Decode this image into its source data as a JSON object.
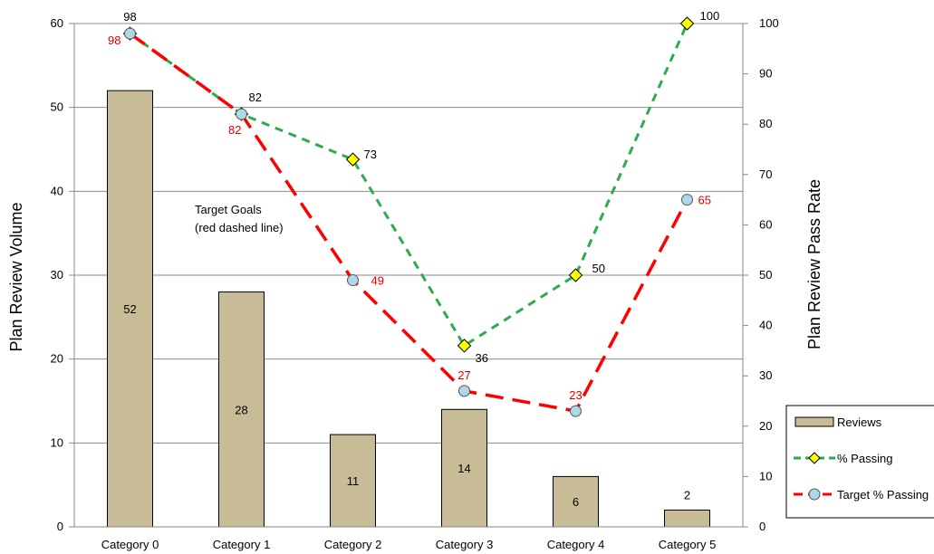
{
  "chart_data": {
    "type": "bar",
    "categories": [
      "Category 0",
      "Category 1",
      "Category 2",
      "Category 3",
      "Category 4",
      "Category 5"
    ],
    "series": [
      {
        "name": "Reviews",
        "type": "bar",
        "axis": "left",
        "values": [
          52,
          28,
          11,
          14,
          6,
          2
        ],
        "labels": [
          "52",
          "28",
          "11",
          "14",
          "6",
          "2"
        ],
        "color": "#c8bc96"
      },
      {
        "name": "% Passing",
        "type": "line",
        "axis": "right",
        "values": [
          98,
          82,
          73,
          36,
          50,
          100
        ],
        "labels": [
          "98",
          "82",
          "73",
          "36",
          "50",
          "100"
        ],
        "color": "#2eaa4f",
        "marker": "diamond",
        "marker_color": "#ffff00"
      },
      {
        "name": "Target % Passing",
        "type": "line",
        "axis": "right",
        "values": [
          98,
          82,
          49,
          27,
          23,
          65
        ],
        "labels": [
          "98",
          "82",
          "49",
          "27",
          "23",
          "65"
        ],
        "color": "#ff0000",
        "marker": "circle",
        "marker_color": "#add8e6"
      }
    ],
    "ylabel": "Plan Review Volume",
    "y2label": "Plan Review Pass Rate",
    "ylim": [
      0,
      60
    ],
    "yticks": [
      "0",
      "10",
      "20",
      "30",
      "40",
      "50",
      "60"
    ],
    "y2lim": [
      0,
      100
    ],
    "y2ticks": [
      "0",
      "10",
      "20",
      "30",
      "40",
      "50",
      "60",
      "70",
      "80",
      "90",
      "100"
    ],
    "grid": true,
    "legend_position": "bottom-right",
    "annotation_line1": "Target Goals",
    "annotation_line2": "(red dashed line)"
  }
}
